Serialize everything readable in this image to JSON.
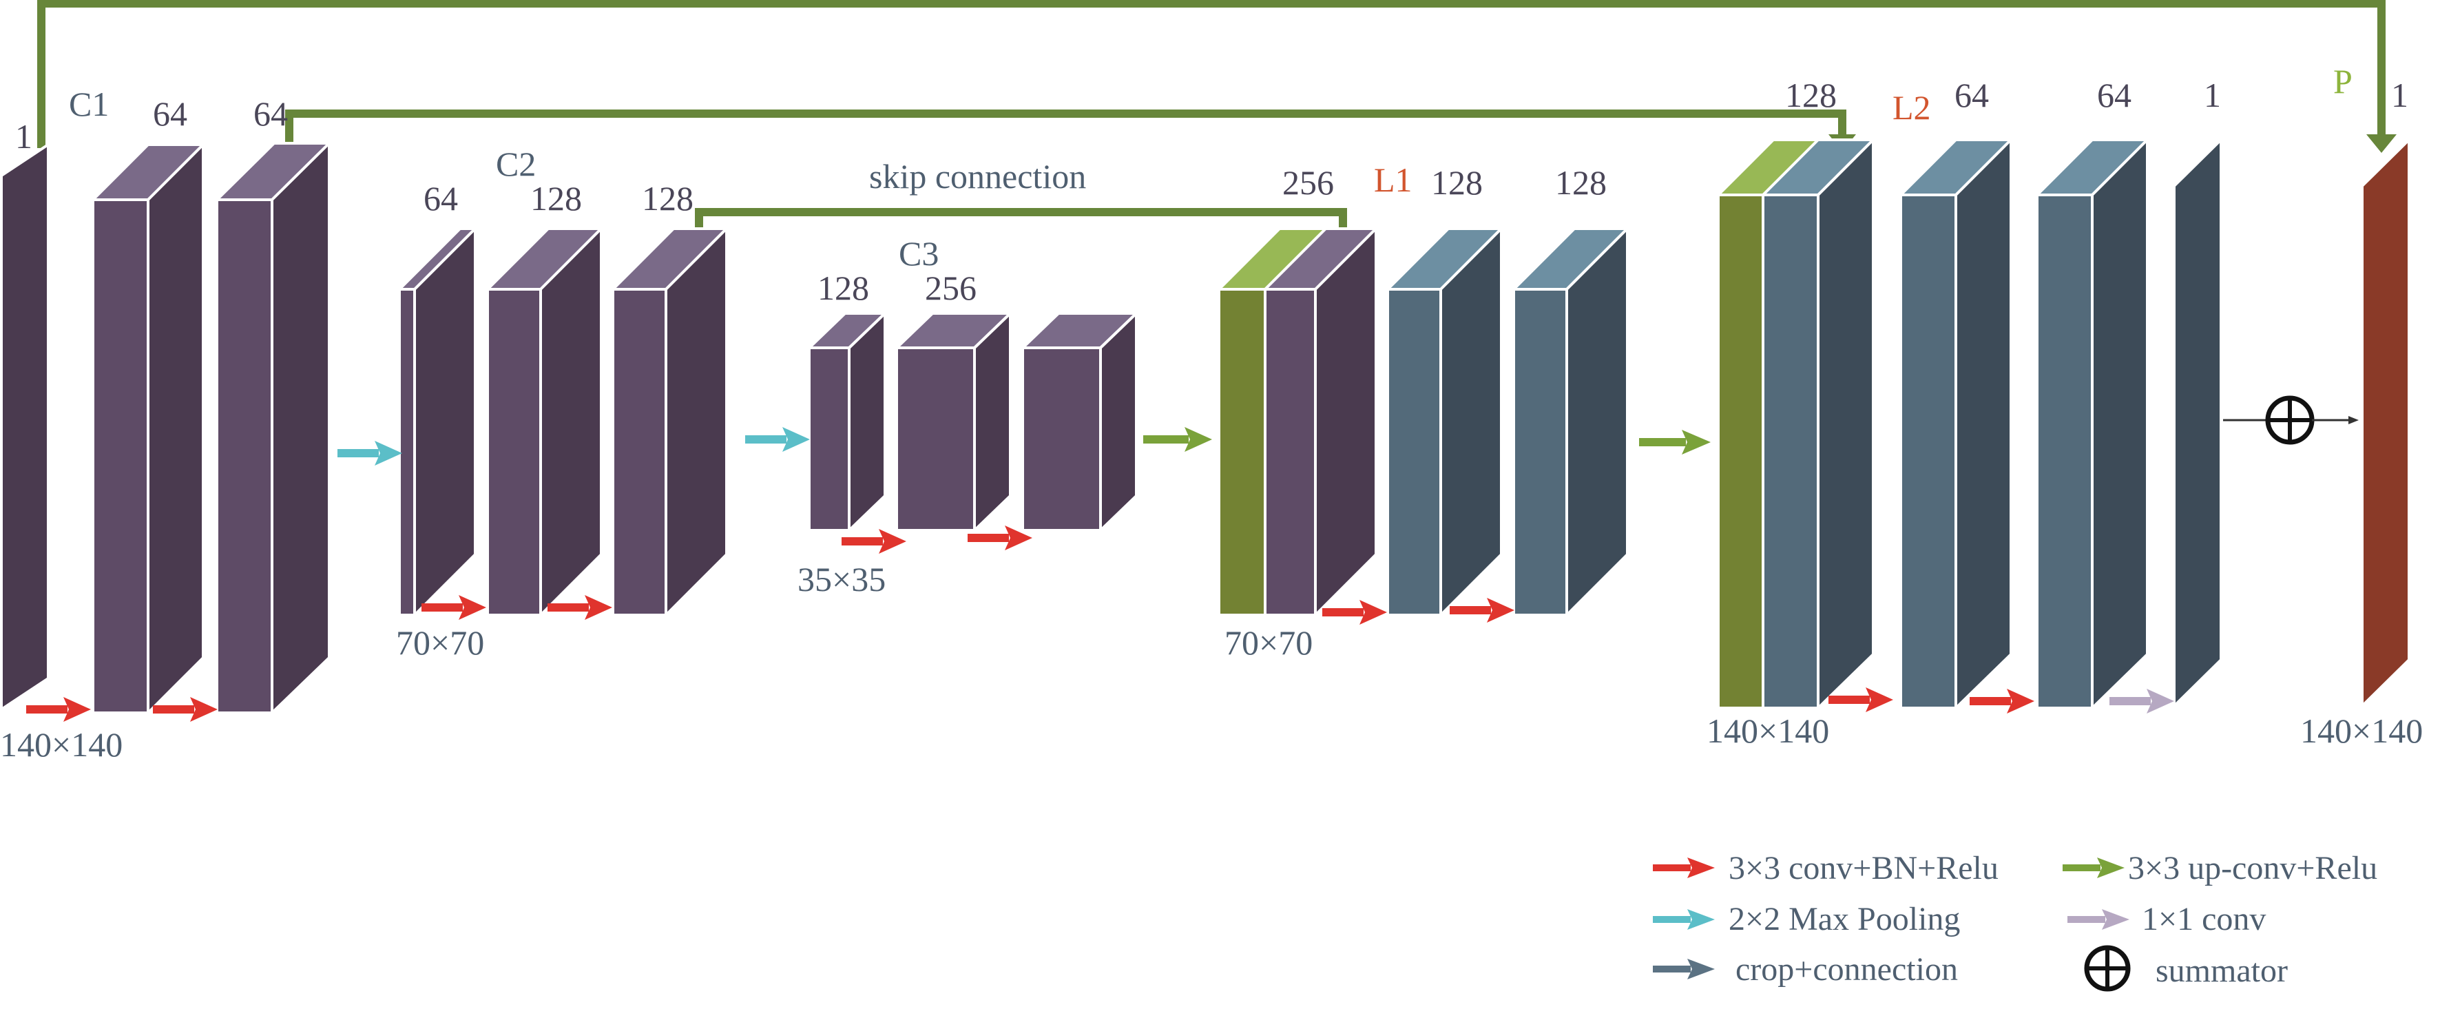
{
  "colors": {
    "purple_front": "#5e4b66",
    "purple_side": "#4a3a4f",
    "purple_top": "#7a6a88",
    "purple_dark_front": "#4a3a4f",
    "teal_front": "#536a7a",
    "teal_side": "#3d4b58",
    "teal_top": "#6d8fa2",
    "green_front": "#738233",
    "green_top": "#98b855",
    "brown_front": "#8a3a28",
    "brown_side": "#6c2c1c",
    "skip_line": "#67863a",
    "red_arrow": "#e0342d",
    "cyan_arrow": "#5bbec8",
    "green_arrow": "#7aa23a",
    "lavender_arrow": "#b6a8c2",
    "slate_arrow": "#5b7283"
  },
  "labels": {
    "c1": "C1",
    "c2": "C2",
    "c3": "C3",
    "l1": "L1",
    "l2": "L2",
    "p": "P",
    "skip": "skip connection",
    "in_ch": "1",
    "c1_a": "64",
    "c1_b": "64",
    "c2_a": "64",
    "c2_b": "128",
    "c2_c": "128",
    "c3_a": "128",
    "c3_b": "256",
    "l1_a": "256",
    "l1_b": "128",
    "l1_c": "128",
    "l2_a": "128",
    "l2_b": "64",
    "l2_c": "64",
    "l2_d": "1",
    "p_ch": "1",
    "size_140_left": "140×140",
    "size_70_left": "70×70",
    "size_35": "35×35",
    "size_70_right": "70×70",
    "size_140_right": "140×140",
    "size_140_out": "140×140"
  },
  "legend": {
    "conv": "3×3 conv+BN+Relu",
    "upconv": "3×3 up-conv+Relu",
    "pool": "2×2 Max Pooling",
    "conv1": "1×1 conv",
    "crop": "crop+connection",
    "sum": "summator"
  }
}
